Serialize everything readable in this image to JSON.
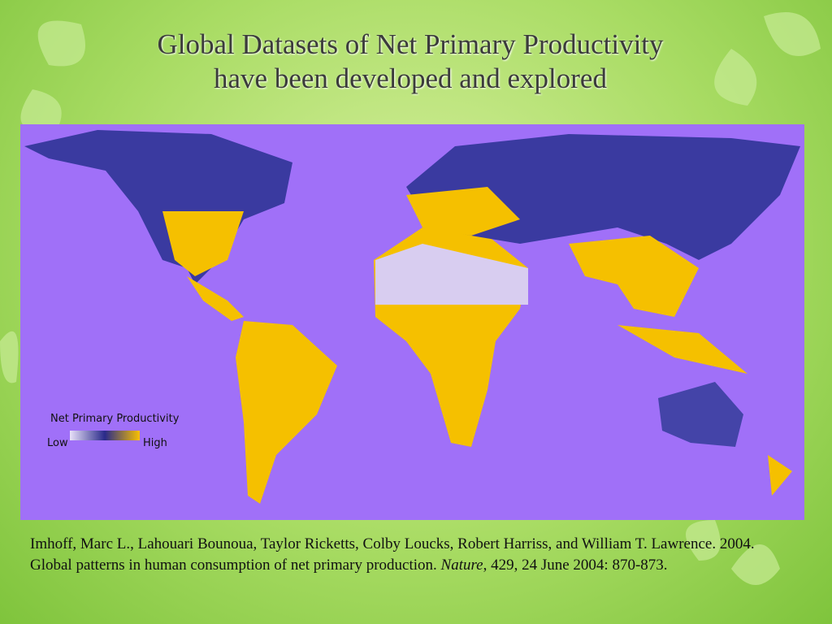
{
  "slide": {
    "title": [
      "Global Datasets of Net Primary Productivity",
      "have been developed and explored"
    ],
    "map": {
      "legend": {
        "title": "Net Primary Productivity",
        "low": "Low",
        "high": "High"
      }
    },
    "citation": {
      "before": "Imhoff, Marc L., Lahouari Bounoua, Taylor Ricketts, Colby Loucks, Robert Harriss, and William T. Lawrence. 2004. Global patterns in human consumption of net primary production. ",
      "journal": "Nature",
      "after": ", 429, 24 June 2004: 870-873."
    }
  }
}
